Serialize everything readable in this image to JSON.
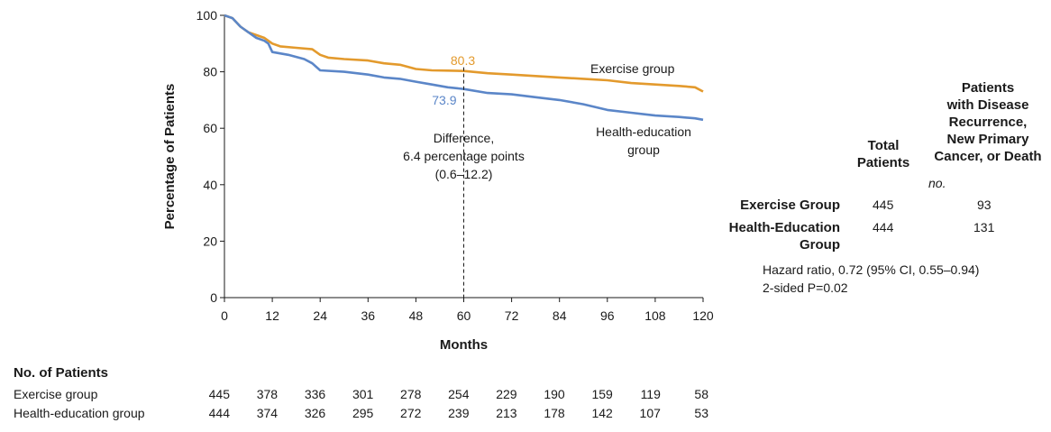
{
  "chart_data": {
    "type": "line",
    "xlabel": "Months",
    "ylabel": "Percentage of Patients",
    "xlim": [
      0,
      120
    ],
    "ylim": [
      0,
      100
    ],
    "x_ticks": [
      0,
      12,
      24,
      36,
      48,
      60,
      72,
      84,
      96,
      108,
      120
    ],
    "y_ticks": [
      0,
      20,
      40,
      60,
      80,
      100
    ],
    "grid": false,
    "series": [
      {
        "name": "Exercise group",
        "color": "#e39a2d",
        "x": [
          0,
          2,
          4,
          6,
          8,
          10,
          12,
          14,
          18,
          22,
          24,
          26,
          30,
          36,
          40,
          44,
          48,
          52,
          56,
          60,
          66,
          72,
          78,
          84,
          90,
          96,
          102,
          108,
          114,
          118,
          120
        ],
        "y": [
          100,
          99,
          96,
          94,
          93,
          92,
          90,
          89,
          88.5,
          88,
          86,
          85,
          84.5,
          84,
          83,
          82.5,
          81,
          80.5,
          80.4,
          80.3,
          79.5,
          79,
          78.5,
          78,
          77.5,
          77,
          76,
          75.5,
          75,
          74.5,
          73
        ]
      },
      {
        "name": "Health-education group",
        "color": "#5b86c8",
        "x": [
          0,
          2,
          4,
          6,
          8,
          10,
          11,
          12,
          16,
          20,
          22,
          24,
          30,
          36,
          40,
          44,
          48,
          52,
          56,
          60,
          66,
          72,
          78,
          84,
          90,
          96,
          102,
          108,
          114,
          118,
          120
        ],
        "y": [
          100,
          99,
          96,
          94,
          92,
          91,
          90,
          87,
          86,
          84.5,
          83,
          80.5,
          80,
          79,
          78,
          77.5,
          76.5,
          75.5,
          74.5,
          73.9,
          72.5,
          72,
          71,
          70,
          68.5,
          66.5,
          65.5,
          64.5,
          64,
          63.5,
          63
        ]
      }
    ],
    "series_labels": [
      "Exercise group",
      "Health-education",
      "group"
    ],
    "annotations": {
      "marker_x": 60,
      "exercise_value": "80.3",
      "health_value": "73.9",
      "difference_lines": [
        "Difference,",
        "6.4 percentage points",
        "(0.6–12.2)"
      ]
    }
  },
  "table": {
    "col_total": [
      "Total",
      "Patients"
    ],
    "col_events": [
      "Patients",
      "with Disease",
      "Recurrence,",
      "New Primary",
      "Cancer, or Death"
    ],
    "unit": "no.",
    "rows": [
      {
        "label": [
          "Exercise Group"
        ],
        "total": "445",
        "events": "93"
      },
      {
        "label": [
          "Health-Education",
          "Group"
        ],
        "total": "444",
        "events": "131"
      }
    ],
    "hazard": "Hazard ratio, 0.72 (95% CI, 0.55–0.94)",
    "pvalue": "2-sided P=0.02"
  },
  "risk": {
    "title": "No. of Patients",
    "rows": [
      {
        "label": "Exercise group",
        "values": [
          "445",
          "378",
          "336",
          "301",
          "278",
          "254",
          "229",
          "190",
          "159",
          "119",
          "58"
        ]
      },
      {
        "label": "Health-education group",
        "values": [
          "444",
          "374",
          "326",
          "295",
          "272",
          "239",
          "213",
          "178",
          "142",
          "107",
          "53"
        ]
      }
    ]
  }
}
